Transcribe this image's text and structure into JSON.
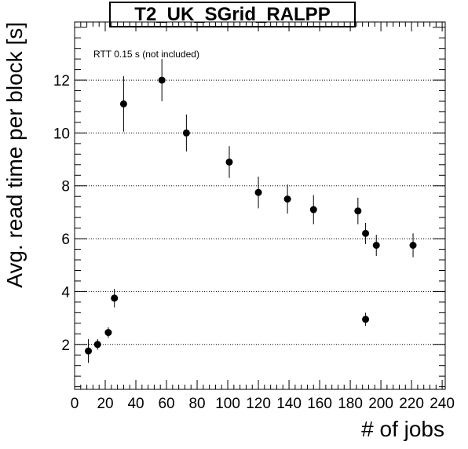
{
  "chart_data": {
    "type": "scatter",
    "title": "T2_UK_SGrid_RALPP",
    "xlabel": "# of jobs",
    "ylabel": "Avg. read time per block [s]",
    "annotation": "RTT 0.15 s (not included)",
    "xlim": [
      0,
      242
    ],
    "ylim": [
      0.3,
      14.2
    ],
    "x_ticks": [
      0,
      20,
      40,
      60,
      80,
      100,
      120,
      140,
      160,
      180,
      200,
      220,
      240
    ],
    "y_ticks": [
      2,
      4,
      6,
      8,
      10,
      12
    ],
    "grid": "horizontal dotted at major y ticks",
    "marker_color": "#000000",
    "series": [
      {
        "points": [
          {
            "x": 9,
            "y": 1.75,
            "err": 0.45
          },
          {
            "x": 15,
            "y": 2.0,
            "err": 0.2
          },
          {
            "x": 22,
            "y": 2.45,
            "err": 0.2
          },
          {
            "x": 26,
            "y": 3.75,
            "err": 0.35
          },
          {
            "x": 32,
            "y": 11.1,
            "err": 1.05
          },
          {
            "x": 57,
            "y": 12.0,
            "err": 0.8
          },
          {
            "x": 73,
            "y": 10.0,
            "err": 0.7
          },
          {
            "x": 101,
            "y": 8.9,
            "err": 0.6
          },
          {
            "x": 120,
            "y": 7.75,
            "err": 0.6
          },
          {
            "x": 139,
            "y": 7.5,
            "err": 0.55
          },
          {
            "x": 156,
            "y": 7.1,
            "err": 0.55
          },
          {
            "x": 185,
            "y": 7.05,
            "err": 0.5
          },
          {
            "x": 190,
            "y": 6.2,
            "err": 0.4
          },
          {
            "x": 190,
            "y": 2.95,
            "err": 0.25
          },
          {
            "x": 197,
            "y": 5.75,
            "err": 0.4
          },
          {
            "x": 221,
            "y": 5.75,
            "err": 0.45
          }
        ]
      }
    ]
  }
}
